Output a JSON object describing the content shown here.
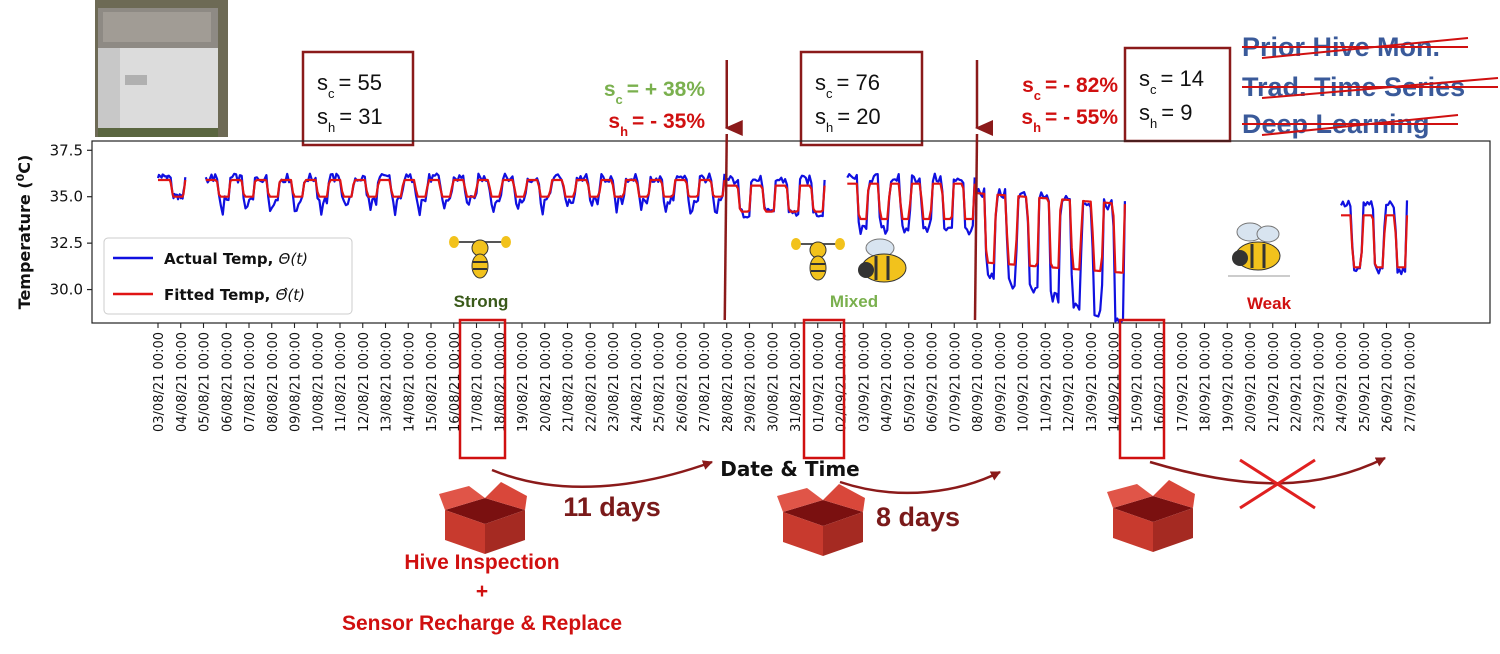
{
  "chart_data": {
    "type": "line",
    "xlabel": "Date & Time",
    "ylabel": "Temperature (⁰C)",
    "ylabel_parts": {
      "main": "Temperature (",
      "sup": "0",
      "unit": "C)"
    },
    "ylim": [
      28.2,
      38.0
    ],
    "yticks": [
      "30.0",
      "32.5",
      "35.0",
      "37.5"
    ],
    "ytick_values": [
      30.0,
      32.5,
      35.0,
      37.5
    ],
    "x_tick_labels": [
      "03/08/21 00:00",
      "04/08/21 00:00",
      "05/08/21 00:00",
      "06/08/21 00:00",
      "07/08/21 00:00",
      "08/08/21 00:00",
      "09/08/21 00:00",
      "10/08/21 00:00",
      "11/08/21 00:00",
      "12/08/21 00:00",
      "13/08/21 00:00",
      "14/08/21 00:00",
      "15/08/21 00:00",
      "16/08/21 00:00",
      "17/08/21 00:00",
      "18/08/21 00:00",
      "19/08/21 00:00",
      "20/08/21 00:00",
      "21/08/21 00:00",
      "22/08/21 00:00",
      "23/08/21 00:00",
      "24/08/21 00:00",
      "25/08/21 00:00",
      "26/08/21 00:00",
      "27/08/21 00:00",
      "28/08/21 00:00",
      "29/08/21 00:00",
      "30/08/21 00:00",
      "31/08/21 00:00",
      "01/09/21 00:00",
      "02/09/21 00:00",
      "03/09/21 00:00",
      "04/09/21 00:00",
      "05/09/21 00:00",
      "06/09/21 00:00",
      "07/09/21 00:00",
      "08/09/21 00:00",
      "09/09/21 00:00",
      "10/09/21 00:00",
      "11/09/21 00:00",
      "12/09/21 00:00",
      "13/09/21 00:00",
      "14/09/21 00:00",
      "15/09/21 00:00",
      "16/09/21 00:00",
      "17/09/21 00:00",
      "18/09/21 00:00",
      "19/09/21 00:00",
      "20/09/21 00:00",
      "21/09/21 00:00",
      "22/09/21 00:00",
      "23/09/21 00:00",
      "24/09/21 00:00",
      "25/09/21 00:00",
      "26/09/21 00:00",
      "27/09/21 00:00"
    ],
    "legend_position": "center-left",
    "grid": false,
    "series": [
      {
        "name": "Actual Temp, Θ(t)",
        "legend_text": "Actual Temp, ",
        "legend_math": "Θ(t)",
        "color": "#1010e0",
        "segments": [
          {
            "start_day": 0.0,
            "end_day": 1.2,
            "cycles": 1,
            "lo": 35.0,
            "hi": 36.1,
            "noise": 0.3
          },
          {
            "start_day": 2.1,
            "end_day": 24.9,
            "cycles": 21,
            "lo": 34.8,
            "hi": 36.0,
            "noise": 0.5,
            "dip": 34.0
          },
          {
            "start_day": 25.0,
            "end_day": 29.3,
            "cycles": 4,
            "lo": 34.1,
            "hi": 35.9,
            "noise": 0.5
          },
          {
            "start_day": 30.3,
            "end_day": 35.9,
            "cycles": 6,
            "lo": 33.2,
            "hi": 36.0,
            "noise": 0.5
          },
          {
            "start_day": 35.9,
            "end_day": 42.5,
            "cycles": 7,
            "lo": 31.0,
            "hi": 35.3,
            "noise": 0.6,
            "end_lo": 28.3,
            "end_hi": 34.5
          },
          {
            "start_day": 52.0,
            "end_day": 54.9,
            "cycles": 3,
            "lo": 31.0,
            "hi": 34.6,
            "noise": 0.4
          }
        ]
      },
      {
        "name": "Fitted Temp, Θ̂(t)",
        "legend_text": "Fitted Temp, ",
        "legend_math": "Θ̂(t)",
        "color": "#e01414",
        "segments": [
          {
            "start_day": 0.0,
            "end_day": 1.2,
            "cycles": 1,
            "lo": 35.0,
            "hi": 35.9,
            "noise": 0.0
          },
          {
            "start_day": 2.1,
            "end_day": 24.9,
            "cycles": 21,
            "lo": 35.0,
            "hi": 35.9,
            "noise": 0.0
          },
          {
            "start_day": 25.0,
            "end_day": 29.3,
            "cycles": 4,
            "lo": 34.2,
            "hi": 35.6,
            "noise": 0.0
          },
          {
            "start_day": 30.3,
            "end_day": 35.9,
            "cycles": 6,
            "lo": 33.8,
            "hi": 35.7,
            "noise": 0.0
          },
          {
            "start_day": 35.9,
            "end_day": 42.5,
            "cycles": 7,
            "lo": 31.5,
            "hi": 35.2,
            "noise": 0.0,
            "end_lo": 30.9,
            "end_hi": 34.6
          },
          {
            "start_day": 52.0,
            "end_day": 54.9,
            "cycles": 3,
            "lo": 31.2,
            "hi": 34.0,
            "noise": 0.0
          }
        ]
      }
    ],
    "change_points": [
      25.0,
      36.0
    ]
  },
  "score_boxes": [
    {
      "c_value": "55",
      "h_value": "31"
    },
    {
      "c_value": "76",
      "h_value": "20"
    },
    {
      "c_value": "14",
      "h_value": "9"
    }
  ],
  "score_symbol": {
    "base": "s",
    "c_sub": "c",
    "h_sub": "h",
    "eq": "= "
  },
  "changes": [
    {
      "c_change": "+ 38%",
      "h_change": "- 35%",
      "c_color": "#7ab04e",
      "h_color": "#d01010"
    },
    {
      "c_change": "- 82%",
      "h_change": "- 55%",
      "c_color": "#d01010",
      "h_color": "#d01010"
    }
  ],
  "colony_states": [
    {
      "label": "Strong",
      "color": "#3a5a1a"
    },
    {
      "label": "Mixed",
      "color": "#7ab04e"
    },
    {
      "label": "Weak",
      "color": "#d01010"
    }
  ],
  "intervals": [
    "11 days",
    "8 days"
  ],
  "inspection_note": {
    "line1": "Hive Inspection",
    "line2": "+",
    "line3": "Sensor Recharge & Replace"
  },
  "prior_methods": [
    "Prior Hive Mon.",
    "Trad. Time Series",
    "Deep Learning"
  ],
  "colors": {
    "accent_dark_red": "#8b1a1a",
    "highlight_red": "#d01010",
    "method_blue": "#3a5a9a",
    "box_red": "#c83a2e"
  }
}
